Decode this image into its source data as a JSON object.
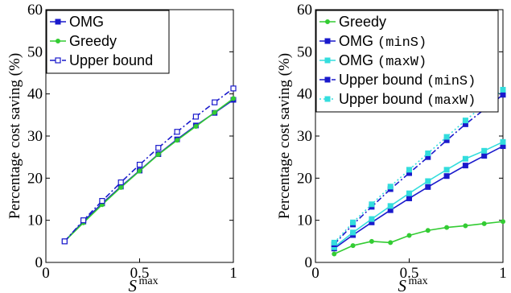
{
  "chart_data": [
    {
      "type": "line",
      "title": "",
      "xlabel": "S",
      "xlabel_sup": "max",
      "ylabel": "Percentage cost saving (%)",
      "xlim": [
        0,
        1
      ],
      "ylim": [
        0,
        60
      ],
      "xticks": [
        "0",
        "0.5",
        "1"
      ],
      "yticks": [
        "0",
        "10",
        "20",
        "30",
        "40",
        "50",
        "60"
      ],
      "grid": false,
      "legend_position": "top-left",
      "x": [
        0.1,
        0.2,
        0.3,
        0.4,
        0.5,
        0.6,
        0.7,
        0.8,
        0.9,
        1.0
      ],
      "series": [
        {
          "name": "OMG",
          "name_mono": "",
          "color": "#1a1acc",
          "style": "solid",
          "marker": "filled-square",
          "values": [
            5.0,
            9.7,
            14.0,
            18.0,
            21.8,
            25.7,
            29.2,
            32.5,
            35.5,
            38.6
          ]
        },
        {
          "name": "Greedy",
          "name_mono": "",
          "color": "#33cc33",
          "style": "solid",
          "marker": "filled-circle",
          "values": [
            5.0,
            9.4,
            13.7,
            17.8,
            21.7,
            25.6,
            29.0,
            32.3,
            35.6,
            38.9
          ]
        },
        {
          "name": "Upper bound",
          "name_mono": "",
          "color": "#1a1acc",
          "style": "dashdot",
          "marker": "open-square",
          "values": [
            5.0,
            10.0,
            14.6,
            19.0,
            23.2,
            27.2,
            31.0,
            34.6,
            38.0,
            41.3
          ]
        }
      ]
    },
    {
      "type": "line",
      "title": "",
      "xlabel": "S",
      "xlabel_sup": "max",
      "ylabel": "Percentage cost saving (%)",
      "xlim": [
        0,
        1
      ],
      "ylim": [
        0,
        60
      ],
      "xticks": [
        "0",
        "0.5",
        "1"
      ],
      "yticks": [
        "0",
        "10",
        "20",
        "30",
        "40",
        "50",
        "60"
      ],
      "grid": false,
      "legend_position": "top-left",
      "x": [
        0.1,
        0.2,
        0.3,
        0.4,
        0.5,
        0.6,
        0.7,
        0.8,
        0.9,
        1.0
      ],
      "series": [
        {
          "name": "Greedy",
          "name_mono": "",
          "color": "#33cc33",
          "style": "solid",
          "marker": "filled-circle",
          "values": [
            2.0,
            4.0,
            5.0,
            4.7,
            6.4,
            7.6,
            8.3,
            8.7,
            9.2,
            9.7
          ]
        },
        {
          "name": "OMG ",
          "name_mono": "(minS)",
          "color": "#1a1acc",
          "style": "solid",
          "marker": "filled-square",
          "values": [
            3.3,
            6.5,
            9.5,
            12.4,
            15.2,
            17.9,
            20.5,
            23.0,
            25.3,
            27.6
          ]
        },
        {
          "name": "OMG ",
          "name_mono": "(maxW)",
          "color": "#33dddd",
          "style": "solid",
          "marker": "filled-square",
          "values": [
            3.6,
            7.1,
            10.3,
            13.4,
            16.4,
            19.3,
            22.0,
            24.6,
            26.5,
            28.6
          ]
        },
        {
          "name": "Upper bound ",
          "name_mono": "(minS)",
          "color": "#1a1acc",
          "style": "dashdot",
          "marker": "filled-square",
          "values": [
            4.3,
            9.0,
            13.2,
            17.4,
            21.2,
            25.0,
            29.0,
            32.8,
            36.3,
            39.8
          ]
        },
        {
          "name": "Upper bound ",
          "name_mono": "(maxW)",
          "color": "#33dddd",
          "style": "dotted",
          "marker": "filled-square",
          "values": [
            4.7,
            9.5,
            13.8,
            18.0,
            22.0,
            25.9,
            29.8,
            33.7,
            37.4,
            41.0
          ]
        }
      ]
    }
  ]
}
